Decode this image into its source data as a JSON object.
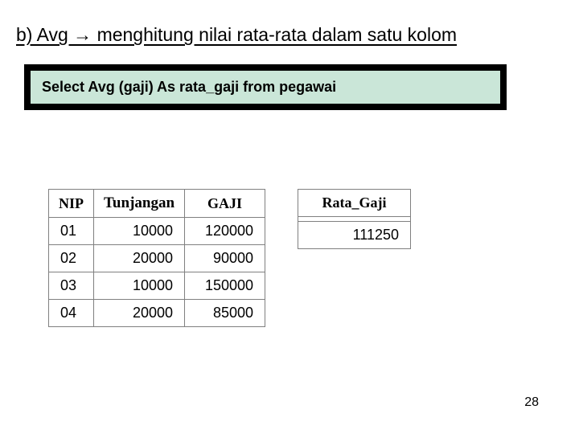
{
  "heading": "b) Avg → menghitung nilai rata-rata dalam satu kolom",
  "sql": "Select Avg (gaji) As rata_gaji from pegawai",
  "inputTable": {
    "headers": [
      "NIP",
      "Tunjangan",
      "GAJI"
    ],
    "rows": [
      [
        "01",
        "10000",
        "120000"
      ],
      [
        "02",
        "20000",
        "90000"
      ],
      [
        "03",
        "10000",
        "150000"
      ],
      [
        "04",
        "20000",
        "85000"
      ]
    ]
  },
  "resultTable": {
    "header": "Rata_Gaji",
    "value": "111250"
  },
  "pageNumber": "28"
}
